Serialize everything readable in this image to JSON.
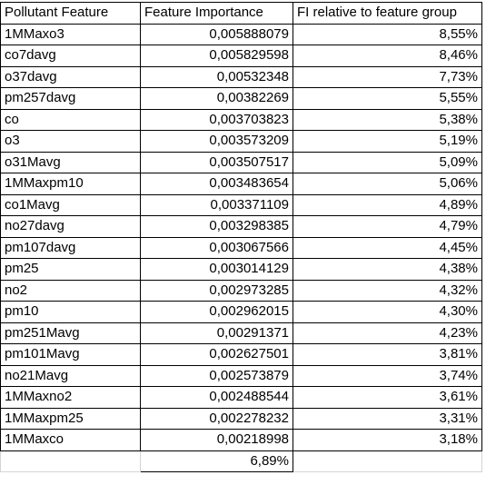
{
  "headers": [
    "Pollutant Feature",
    "Feature Importance",
    "FI relative to feature group"
  ],
  "rows": [
    [
      "1MMaxo3",
      "0,005888079",
      "8,55%"
    ],
    [
      "co7davg",
      "0,005829598",
      "8,46%"
    ],
    [
      "o37davg",
      "0,00532348",
      "7,73%"
    ],
    [
      "pm257davg",
      "0,00382269",
      "5,55%"
    ],
    [
      "co",
      "0,003703823",
      "5,38%"
    ],
    [
      "o3",
      "0,003573209",
      "5,19%"
    ],
    [
      "o31Mavg",
      "0,003507517",
      "5,09%"
    ],
    [
      "1MMaxpm10",
      "0,003483654",
      "5,06%"
    ],
    [
      "co1Mavg",
      "0,003371109",
      "4,89%"
    ],
    [
      "no27davg",
      "0,003298385",
      "4,79%"
    ],
    [
      "pm107davg",
      "0,003067566",
      "4,45%"
    ],
    [
      "pm25",
      "0,003014129",
      "4,38%"
    ],
    [
      "no2",
      "0,002973285",
      "4,32%"
    ],
    [
      "pm10",
      "0,002962015",
      "4,30%"
    ],
    [
      "pm251Mavg",
      "0,00291371",
      "4,23%"
    ],
    [
      "pm101Mavg",
      "0,002627501",
      "3,81%"
    ],
    [
      "no21Mavg",
      "0,002573879",
      "3,74%"
    ],
    [
      "1MMaxno2",
      "0,002488544",
      "3,61%"
    ],
    [
      "1MMaxpm25",
      "0,002278232",
      "3,31%"
    ],
    [
      "1MMaxco",
      "0,00218998",
      "3,18%"
    ]
  ],
  "footer_total": "6,89%"
}
